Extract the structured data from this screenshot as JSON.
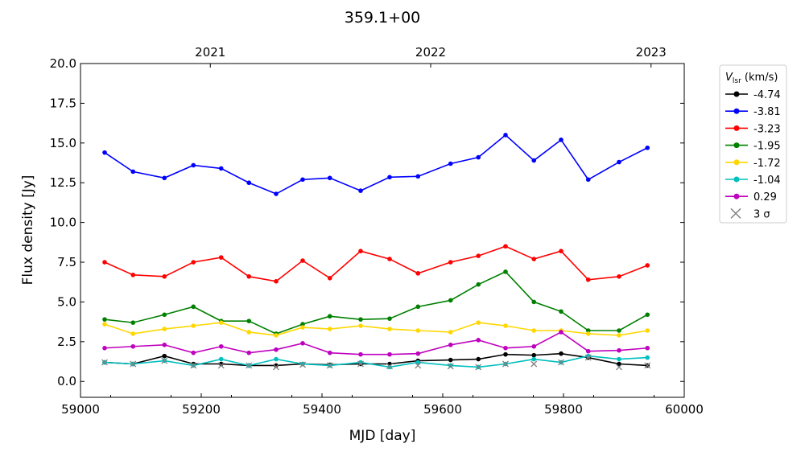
{
  "chart_data": {
    "type": "line",
    "title": "359.1+00",
    "xlabel": "MJD [day]",
    "ylabel": "Flux density [Jy]",
    "xlim": [
      59000,
      60000
    ],
    "ylim": [
      -1,
      20
    ],
    "xticks": [
      59000,
      59200,
      59400,
      59600,
      59800,
      60000
    ],
    "yticks": [
      "0.0",
      "2.5",
      "5.0",
      "7.5",
      "10.0",
      "12.5",
      "15.0",
      "17.5",
      "20.0"
    ],
    "top_axis": {
      "ticks": [
        {
          "label": "2021",
          "mjd": 59215
        },
        {
          "label": "2022",
          "mjd": 59580
        },
        {
          "label": "2023",
          "mjd": 59945
        }
      ]
    },
    "legend": {
      "title": "V_lsr (km/s)",
      "title_main": "V",
      "title_sub": "lsr",
      "title_unit": " (km/s)",
      "placement": "outside-right",
      "sigma_label": "3 σ"
    },
    "x": [
      59040,
      59087,
      59139,
      59187,
      59233,
      59279,
      59324,
      59368,
      59413,
      59464,
      59512,
      59559,
      59613,
      59659,
      59704,
      59751,
      59796,
      59841,
      59892,
      59939
    ],
    "series": [
      {
        "name": "-4.74",
        "color": "#000000",
        "values": [
          1.2,
          1.1,
          1.6,
          1.1,
          1.1,
          1.0,
          1.0,
          1.1,
          1.05,
          1.1,
          1.1,
          1.3,
          1.35,
          1.4,
          1.7,
          1.65,
          1.75,
          1.5,
          1.1,
          1.0
        ]
      },
      {
        "name": "-3.81",
        "color": "#0000ff",
        "values": [
          14.4,
          13.2,
          12.8,
          13.6,
          13.4,
          12.5,
          11.8,
          12.7,
          12.8,
          12.0,
          12.85,
          12.9,
          13.7,
          14.1,
          15.5,
          13.9,
          15.2,
          12.7,
          13.8,
          14.7
        ]
      },
      {
        "name": "-3.23",
        "color": "#ff0000",
        "values": [
          7.5,
          6.7,
          6.6,
          7.5,
          7.8,
          6.6,
          6.3,
          7.6,
          6.5,
          8.2,
          7.7,
          6.8,
          7.5,
          7.9,
          8.5,
          7.7,
          8.2,
          6.4,
          6.6,
          7.3
        ]
      },
      {
        "name": "-1.95",
        "color": "#008000",
        "values": [
          3.9,
          3.7,
          4.2,
          4.7,
          3.8,
          3.8,
          3.0,
          3.6,
          4.1,
          3.9,
          3.95,
          4.7,
          5.1,
          6.1,
          6.9,
          5.0,
          4.4,
          3.2,
          3.2,
          4.2
        ]
      },
      {
        "name": "-1.72",
        "color": "#ffd700",
        "values": [
          3.6,
          3.0,
          3.3,
          3.5,
          3.7,
          3.1,
          2.9,
          3.4,
          3.3,
          3.5,
          3.3,
          3.2,
          3.1,
          3.7,
          3.5,
          3.2,
          3.2,
          3.0,
          2.9,
          3.2
        ]
      },
      {
        "name": "-1.04",
        "color": "#00bfbf",
        "values": [
          1.2,
          1.1,
          1.3,
          1.0,
          1.4,
          1.0,
          1.4,
          1.1,
          1.0,
          1.2,
          0.9,
          1.2,
          1.0,
          0.9,
          1.1,
          1.4,
          1.2,
          1.6,
          1.4,
          1.5
        ]
      },
      {
        "name": "0.29",
        "color": "#bf00bf",
        "values": [
          2.1,
          2.2,
          2.3,
          1.8,
          2.2,
          1.8,
          2.0,
          2.4,
          1.8,
          1.7,
          1.7,
          1.75,
          2.3,
          2.6,
          2.1,
          2.2,
          3.1,
          1.9,
          1.95,
          2.1
        ]
      }
    ],
    "sigma3": {
      "name": "3 σ",
      "color": "#808080",
      "values": [
        1.2,
        1.1,
        1.3,
        1.0,
        1.0,
        1.0,
        0.9,
        1.05,
        1.0,
        1.1,
        0.95,
        1.0,
        0.95,
        0.9,
        1.1,
        1.1,
        1.2,
        1.5,
        0.9,
        1.0
      ]
    }
  }
}
